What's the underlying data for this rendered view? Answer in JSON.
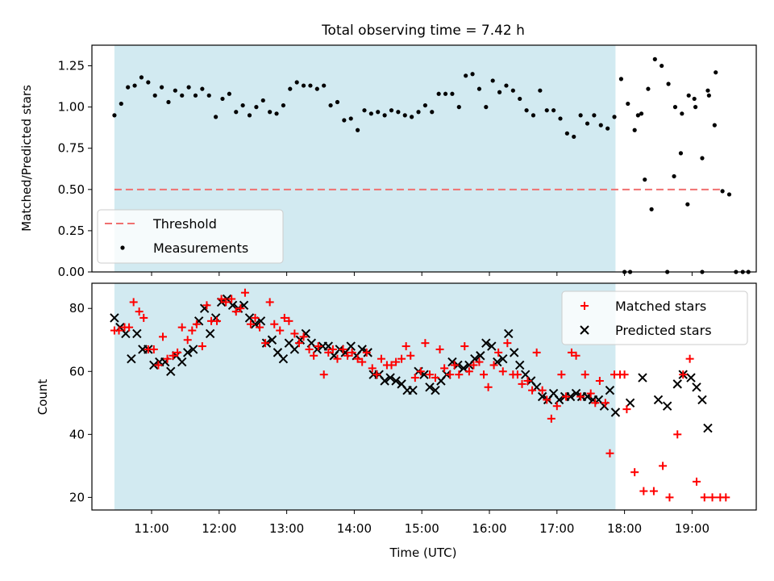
{
  "title": "Total observing time = 7.42 h",
  "chart_data": [
    {
      "type": "scatter",
      "ylabel": "Matched/Predicted stars",
      "xlabel": "",
      "xlim": [
        "10:07",
        "19:57"
      ],
      "ylim": [
        0,
        1.375
      ],
      "yticks": [
        0.0,
        0.25,
        0.5,
        0.75,
        1.0,
        1.25
      ],
      "ytick_labels": [
        "0.00",
        "0.25",
        "0.50",
        "0.75",
        "1.00",
        "1.25"
      ],
      "shaded_interval": [
        "10:27",
        "17:52"
      ],
      "threshold": {
        "name": "Threshold",
        "value": 0.5,
        "x_range": [
          "10:27",
          "19:27"
        ]
      },
      "legend": {
        "placement": "lower-left",
        "entries": [
          "Threshold",
          "Measurements"
        ]
      },
      "series": [
        {
          "name": "Measurements",
          "points": [
            [
              "10:27",
              0.95
            ],
            [
              "10:33",
              1.02
            ],
            [
              "10:39",
              1.12
            ],
            [
              "10:45",
              1.13
            ],
            [
              "10:51",
              1.18
            ],
            [
              "10:57",
              1.15
            ],
            [
              "11:03",
              1.07
            ],
            [
              "11:09",
              1.12
            ],
            [
              "11:15",
              1.03
            ],
            [
              "11:21",
              1.1
            ],
            [
              "11:27",
              1.07
            ],
            [
              "11:33",
              1.12
            ],
            [
              "11:39",
              1.07
            ],
            [
              "11:45",
              1.11
            ],
            [
              "11:51",
              1.07
            ],
            [
              "11:57",
              0.94
            ],
            [
              "12:03",
              1.05
            ],
            [
              "12:09",
              1.08
            ],
            [
              "12:15",
              0.97
            ],
            [
              "12:21",
              1.01
            ],
            [
              "12:27",
              0.95
            ],
            [
              "12:33",
              1.0
            ],
            [
              "12:39",
              1.04
            ],
            [
              "12:45",
              0.97
            ],
            [
              "12:51",
              0.96
            ],
            [
              "12:57",
              1.01
            ],
            [
              "13:03",
              1.11
            ],
            [
              "13:09",
              1.15
            ],
            [
              "13:15",
              1.13
            ],
            [
              "13:21",
              1.13
            ],
            [
              "13:27",
              1.11
            ],
            [
              "13:33",
              1.13
            ],
            [
              "13:39",
              1.01
            ],
            [
              "13:45",
              1.03
            ],
            [
              "13:51",
              0.92
            ],
            [
              "13:57",
              0.93
            ],
            [
              "14:03",
              0.86
            ],
            [
              "14:09",
              0.98
            ],
            [
              "14:15",
              0.96
            ],
            [
              "14:21",
              0.97
            ],
            [
              "14:27",
              0.95
            ],
            [
              "14:33",
              0.98
            ],
            [
              "14:39",
              0.97
            ],
            [
              "14:45",
              0.95
            ],
            [
              "14:51",
              0.94
            ],
            [
              "14:57",
              0.97
            ],
            [
              "15:03",
              1.01
            ],
            [
              "15:09",
              0.97
            ],
            [
              "15:15",
              1.08
            ],
            [
              "15:21",
              1.08
            ],
            [
              "15:27",
              1.08
            ],
            [
              "15:33",
              1.0
            ],
            [
              "15:39",
              1.19
            ],
            [
              "15:45",
              1.2
            ],
            [
              "15:51",
              1.11
            ],
            [
              "15:57",
              1.0
            ],
            [
              "16:03",
              1.16
            ],
            [
              "16:09",
              1.09
            ],
            [
              "16:15",
              1.13
            ],
            [
              "16:21",
              1.1
            ],
            [
              "16:27",
              1.05
            ],
            [
              "16:33",
              0.98
            ],
            [
              "16:39",
              0.95
            ],
            [
              "16:45",
              1.1
            ],
            [
              "16:51",
              0.98
            ],
            [
              "16:57",
              0.98
            ],
            [
              "17:03",
              0.93
            ],
            [
              "17:09",
              0.84
            ],
            [
              "17:15",
              0.82
            ],
            [
              "17:21",
              0.95
            ],
            [
              "17:27",
              0.9
            ],
            [
              "17:33",
              0.95
            ],
            [
              "17:39",
              0.89
            ],
            [
              "17:45",
              0.87
            ],
            [
              "17:51",
              0.94
            ],
            [
              "17:57",
              1.17
            ],
            [
              "18:03",
              1.02
            ],
            [
              "18:09",
              0.86
            ],
            [
              "18:15",
              0.96
            ],
            [
              "18:21",
              1.11
            ],
            [
              "18:27",
              1.29
            ],
            [
              "18:33",
              1.25
            ],
            [
              "18:39",
              1.14
            ],
            [
              "18:45",
              1.0
            ],
            [
              "18:51",
              0.96
            ],
            [
              "18:57",
              1.07
            ],
            [
              "19:03",
              1.0
            ],
            [
              "19:09",
              0.69
            ],
            [
              "19:15",
              1.07
            ],
            [
              "19:21",
              1.21
            ],
            [
              "18:00",
              0.0
            ],
            [
              "18:05",
              0.0
            ],
            [
              "18:12",
              0.95
            ],
            [
              "18:18",
              0.56
            ],
            [
              "18:24",
              0.38
            ],
            [
              "18:38",
              0.0
            ],
            [
              "18:44",
              0.58
            ],
            [
              "18:50",
              0.72
            ],
            [
              "18:56",
              0.41
            ],
            [
              "19:02",
              1.05
            ],
            [
              "19:09",
              0.0
            ],
            [
              "19:14",
              1.1
            ],
            [
              "19:20",
              0.89
            ],
            [
              "19:27",
              0.49
            ],
            [
              "19:33",
              0.47
            ],
            [
              "19:39",
              0.0
            ],
            [
              "19:45",
              0.0
            ],
            [
              "19:50",
              0.0
            ]
          ]
        }
      ]
    },
    {
      "type": "scatter",
      "ylabel": "Count",
      "xlabel": "Time (UTC)",
      "xlim": [
        "10:07",
        "19:57"
      ],
      "ylim": [
        16,
        88
      ],
      "yticks": [
        20,
        40,
        60,
        80
      ],
      "ytick_labels": [
        "20",
        "40",
        "60",
        "80"
      ],
      "xticks": [
        "11:00",
        "12:00",
        "13:00",
        "14:00",
        "15:00",
        "16:00",
        "17:00",
        "18:00",
        "19:00"
      ],
      "shaded_interval": [
        "10:27",
        "17:52"
      ],
      "legend": {
        "placement": "top-right",
        "entries": [
          "Matched stars",
          "Predicted stars"
        ]
      },
      "series": [
        {
          "name": "Matched stars",
          "color": "#ff0000",
          "values": [
            73,
            73,
            74,
            74,
            82,
            79,
            77,
            67,
            67,
            62,
            71,
            64,
            65,
            66,
            74,
            70,
            73,
            75,
            68,
            81,
            76,
            76,
            83,
            82,
            83,
            79,
            80,
            85,
            75,
            77,
            74,
            69,
            82,
            75,
            73,
            77,
            76,
            72,
            69,
            71,
            67,
            65,
            68,
            59,
            66,
            67,
            64,
            67,
            65,
            66,
            64,
            63,
            66,
            61,
            59,
            64,
            62,
            62,
            63,
            64,
            68,
            65,
            58,
            60,
            69,
            59,
            58,
            67,
            61,
            59,
            62,
            59,
            68,
            60,
            62,
            63,
            59,
            55,
            62,
            66,
            60,
            69,
            59,
            59,
            56,
            57,
            54,
            66,
            54,
            51,
            45,
            49,
            59,
            52,
            66,
            65,
            52,
            59,
            53,
            50,
            57,
            50,
            34,
            59,
            59,
            59
          ]
        },
        {
          "name": "Predicted stars",
          "color": "#000000",
          "values": [
            77,
            74,
            72,
            64,
            72,
            67,
            67,
            62,
            63,
            63,
            60,
            65,
            63,
            66,
            67,
            76,
            80,
            72,
            77,
            82,
            83,
            81,
            80,
            81,
            77,
            75,
            76,
            69,
            70,
            66,
            64,
            69,
            67,
            70,
            72,
            69,
            67,
            68,
            68,
            65,
            67,
            66,
            68,
            65,
            67,
            66,
            59,
            59,
            57,
            58,
            57,
            56,
            54,
            54,
            60,
            59,
            55,
            54,
            57,
            59,
            63,
            62,
            61,
            62,
            64,
            65,
            69,
            68,
            63,
            64,
            72,
            66,
            62,
            59,
            57,
            55,
            52,
            51,
            53,
            51,
            52,
            52,
            53,
            52,
            52,
            51,
            51,
            49,
            54,
            47
          ],
          "extra_points": [
            [
              "18:05",
              50
            ],
            [
              "18:16",
              58
            ],
            [
              "18:30",
              51
            ],
            [
              "18:38",
              49
            ],
            [
              "18:47",
              56
            ],
            [
              "18:52",
              59
            ],
            [
              "18:59",
              58
            ],
            [
              "19:04",
              55
            ],
            [
              "19:09",
              51
            ],
            [
              "19:14",
              42
            ]
          ]
        }
      ],
      "extra_matched_points": [
        [
          "18:02",
          48
        ],
        [
          "18:09",
          28
        ],
        [
          "18:17",
          22
        ],
        [
          "18:26",
          22
        ],
        [
          "18:34",
          30
        ],
        [
          "18:40",
          20
        ],
        [
          "18:47",
          40
        ],
        [
          "18:52",
          59
        ],
        [
          "18:58",
          64
        ],
        [
          "19:04",
          25
        ],
        [
          "19:11",
          20
        ],
        [
          "19:18",
          20
        ],
        [
          "19:25",
          20
        ],
        [
          "19:30",
          20
        ]
      ]
    }
  ]
}
